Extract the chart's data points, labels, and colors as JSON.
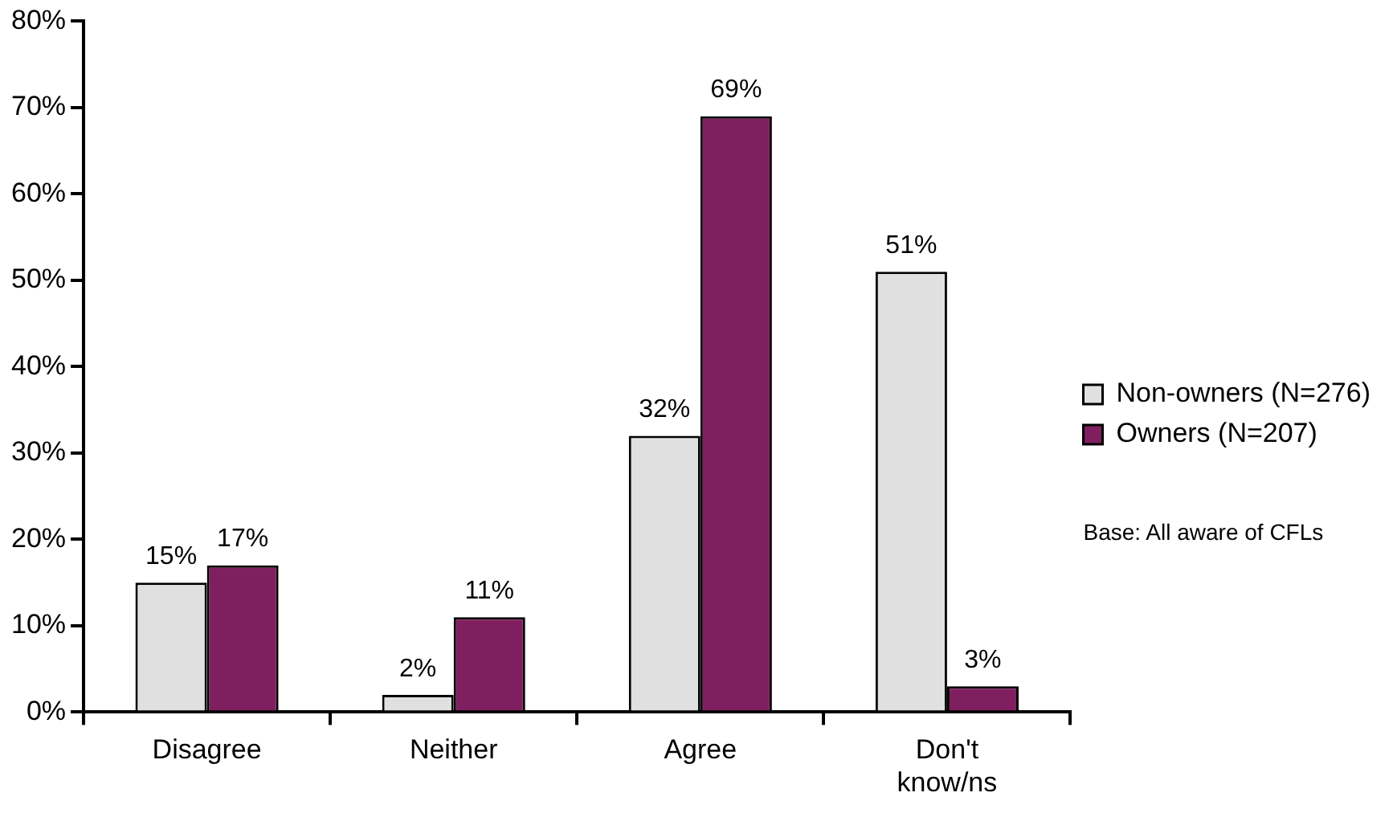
{
  "chart_data": {
    "type": "bar",
    "categories": [
      "Disagree",
      "Neither",
      "Agree",
      "Don't know/ns"
    ],
    "series": [
      {
        "name": "Non-owners (N=276)",
        "color": "#e0e0e0",
        "values": [
          15,
          2,
          32,
          51
        ],
        "value_labels": [
          "15%",
          "2%",
          "32%",
          "51%"
        ]
      },
      {
        "name": "Owners (N=207)",
        "color": "#7f1f5f",
        "values": [
          17,
          11,
          69,
          3
        ],
        "value_labels": [
          "17%",
          "11%",
          "69%",
          "3%"
        ]
      }
    ],
    "ylim": [
      0,
      80
    ],
    "yticks": [
      {
        "value": 0,
        "label": "0%"
      },
      {
        "value": 10,
        "label": "10%"
      },
      {
        "value": 20,
        "label": "20%"
      },
      {
        "value": 30,
        "label": "30%"
      },
      {
        "value": 40,
        "label": "40%"
      },
      {
        "value": 50,
        "label": "50%"
      },
      {
        "value": 60,
        "label": "60%"
      },
      {
        "value": 70,
        "label": "70%"
      },
      {
        "value": 80,
        "label": "80%"
      }
    ],
    "grid": false,
    "legend": "right",
    "annotations": [
      "Base: All aware of CFLs"
    ]
  }
}
